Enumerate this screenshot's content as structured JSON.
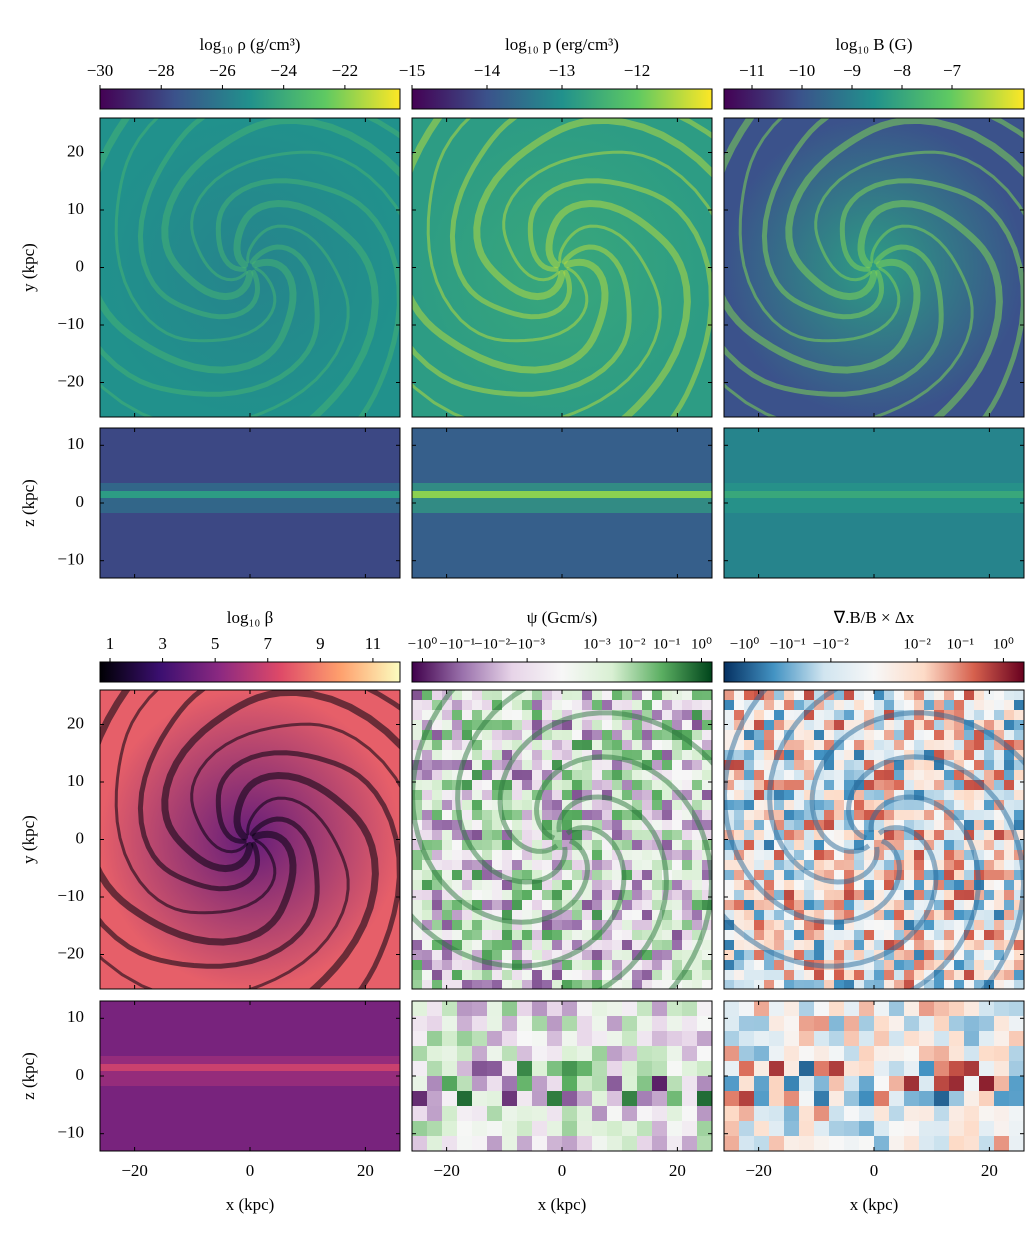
{
  "chart_data": [
    {
      "type": "image",
      "colorbar_label": "log₁₀ ρ (g/cm³)",
      "clim": [
        -30,
        -20.2
      ],
      "cscale": "linear",
      "cticks": [
        {
          "value": -30,
          "label": "−30"
        },
        {
          "value": -28,
          "label": "−28"
        },
        {
          "value": -26,
          "label": "−26"
        },
        {
          "value": -24,
          "label": "−24"
        },
        {
          "value": -22,
          "label": "−22"
        }
      ],
      "colormap": [
        "#440154",
        "#3b528b",
        "#21918c",
        "#5ec962",
        "#fde725"
      ]
    },
    {
      "type": "image",
      "colorbar_label": "log₁₀ p (erg/cm³)",
      "clim": [
        -15,
        -11
      ],
      "cscale": "linear",
      "cticks": [
        {
          "value": -15,
          "label": "−15"
        },
        {
          "value": -14,
          "label": "−14"
        },
        {
          "value": -13,
          "label": "−13"
        },
        {
          "value": -12,
          "label": "−12"
        }
      ],
      "colormap": [
        "#440154",
        "#3b528b",
        "#21918c",
        "#5ec962",
        "#fde725"
      ]
    },
    {
      "type": "image",
      "colorbar_label": "log₁₀ B (G)",
      "clim": [
        -11.56,
        -5.56
      ],
      "cscale": "linear",
      "cticks": [
        {
          "value": -11,
          "label": "−11"
        },
        {
          "value": -10,
          "label": "−10"
        },
        {
          "value": -9,
          "label": "−9"
        },
        {
          "value": -8,
          "label": "−8"
        },
        {
          "value": -7,
          "label": "−7"
        }
      ],
      "colormap": [
        "#440154",
        "#3b528b",
        "#21918c",
        "#5ec962",
        "#fde725"
      ]
    },
    {
      "type": "image",
      "colorbar_label": "log₁₀ β",
      "clim": [
        0.62,
        12.03
      ],
      "cscale": "linear",
      "cticks": [
        1,
        3,
        5,
        7,
        9,
        11
      ],
      "colormap": [
        "#000004",
        "#3b0f70",
        "#8c2981",
        "#de4968",
        "#fe9f6d",
        "#fcfdbf"
      ]
    },
    {
      "type": "image",
      "colorbar_label": "ψ (Gcm/s)",
      "clim": [
        -2,
        2
      ],
      "cscale": "symlog",
      "linthresh": 0.001,
      "cticks": [
        {
          "value": -1,
          "label": "−10⁰"
        },
        {
          "value": -0.1,
          "label": "−10⁻¹"
        },
        {
          "value": -0.01,
          "label": "−10⁻²"
        },
        {
          "value": -0.001,
          "label": "−10⁻³"
        },
        {
          "value": 0.001,
          "label": "10⁻³"
        },
        {
          "value": 0.01,
          "label": "10⁻²"
        },
        {
          "value": 0.1,
          "label": "10⁻¹"
        },
        {
          "value": 1,
          "label": "10⁰"
        }
      ],
      "colormap": [
        "#40004b",
        "#9970ab",
        "#e7d4e8",
        "#f7f7f7",
        "#d9f0d3",
        "#5aae61",
        "#00441b"
      ]
    },
    {
      "type": "image",
      "colorbar_label": "∇.B/B × Δx",
      "clim": [
        -3,
        3
      ],
      "cscale": "symlog",
      "linthresh": 0.01,
      "cticks": [
        {
          "value": -1,
          "label": "−10⁰"
        },
        {
          "value": -0.1,
          "label": "−10⁻¹"
        },
        {
          "value": -0.01,
          "label": "−10⁻²"
        },
        {
          "value": 0.01,
          "label": "10⁻²"
        },
        {
          "value": 0.1,
          "label": "10⁻¹"
        },
        {
          "value": 1,
          "label": "10⁰"
        }
      ],
      "colormap": [
        "#053061",
        "#4393c3",
        "#d1e5f0",
        "#f7f7f7",
        "#fddbc7",
        "#d6604d",
        "#67001f"
      ]
    }
  ],
  "axes": {
    "xlabel": "x (kpc)",
    "ylabel": "y (kpc)",
    "zlabel": "z (kpc)",
    "xlim": [
      -26,
      26
    ],
    "xticks": [
      {
        "value": -20,
        "label": "−20"
      },
      0,
      20
    ],
    "ylim": [
      -26,
      26
    ],
    "yticks": [
      {
        "value": -20,
        "label": "−20"
      },
      {
        "value": -10,
        "label": "−10"
      },
      0,
      10,
      20
    ],
    "zlim": [
      -13,
      13
    ],
    "zticks": [
      {
        "value": -10,
        "label": "−10"
      },
      0,
      10
    ]
  }
}
